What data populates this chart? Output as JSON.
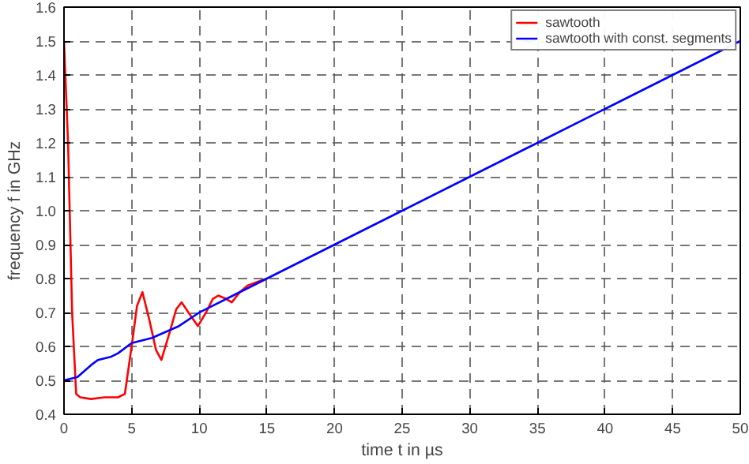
{
  "chart_data": {
    "type": "line",
    "xlabel": "time t in µs",
    "ylabel": "frequency f in GHz",
    "series": [
      {
        "name": "sawtooth",
        "color": "#ff0000",
        "x": [
          0,
          0.3,
          0.6,
          0.9,
          1.2,
          2,
          3,
          4,
          4.5,
          5,
          5.4,
          5.8,
          6.3,
          6.8,
          7.2,
          7.8,
          8.3,
          8.7,
          9.2,
          9.9,
          10.5,
          11,
          11.4,
          12,
          12.4,
          13,
          13.6,
          14.3,
          15
        ],
        "values": [
          1.5,
          1.2,
          0.7,
          0.46,
          0.45,
          0.445,
          0.45,
          0.45,
          0.46,
          0.6,
          0.72,
          0.76,
          0.68,
          0.59,
          0.56,
          0.64,
          0.71,
          0.73,
          0.7,
          0.66,
          0.7,
          0.74,
          0.75,
          0.74,
          0.73,
          0.76,
          0.78,
          0.79,
          0.8
        ]
      },
      {
        "name": "sawtooth with const. segments",
        "color": "#0000ff",
        "x": [
          0,
          1,
          2,
          2.5,
          3.5,
          4,
          5,
          6.5,
          8.5,
          10,
          12.5,
          15,
          20,
          25,
          30,
          35,
          40,
          45,
          50
        ],
        "values": [
          0.5,
          0.51,
          0.545,
          0.56,
          0.57,
          0.58,
          0.61,
          0.625,
          0.66,
          0.7,
          0.75,
          0.8,
          0.9,
          1.0,
          1.1,
          1.2,
          1.3,
          1.4,
          1.5
        ]
      }
    ],
    "xlim": [
      0,
      50
    ],
    "ylim": [
      0.4,
      1.6
    ],
    "xticks": [
      0,
      5,
      10,
      15,
      20,
      25,
      30,
      35,
      40,
      45,
      50
    ],
    "yticks": [
      0.4,
      0.5,
      0.6,
      0.7,
      0.8,
      0.9,
      {
        "value": 1,
        "label": "1.0"
      },
      1.1,
      1.2,
      1.3,
      1.4,
      1.5,
      1.6
    ],
    "grid": true,
    "legend": "top right",
    "line_style": "solid"
  }
}
